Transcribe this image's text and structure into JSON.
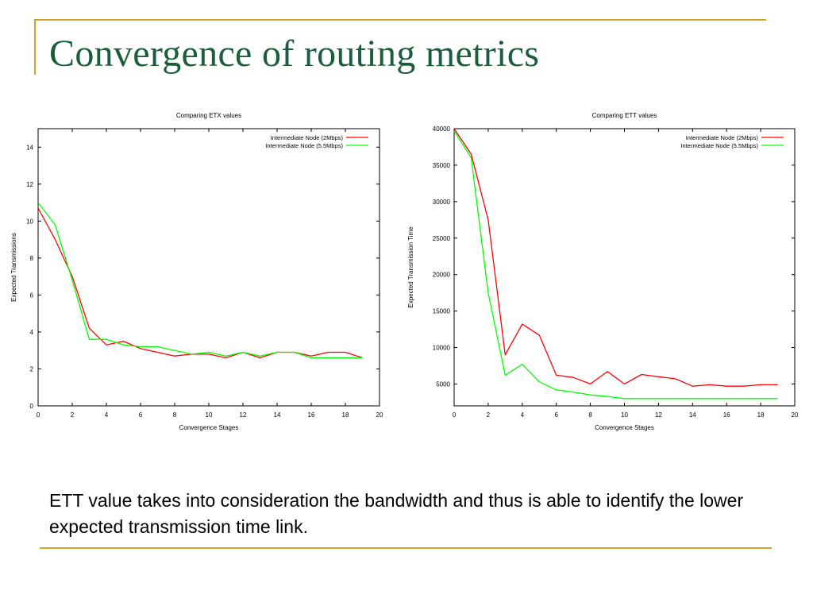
{
  "slide": {
    "title": "Convergence of routing metrics",
    "caption": "ETT value takes into consideration the bandwidth and thus is able to identify the lower expected transmission time link.",
    "accent_color": "#d4a12a",
    "title_color": "#1b5e3b"
  },
  "chart_data": [
    {
      "type": "line",
      "title": "Comparing ETX values",
      "xlabel": "Convergence Stages",
      "ylabel": "Expected Transmissions",
      "xlim": [
        0,
        20
      ],
      "ylim": [
        0,
        15
      ],
      "xticks": [
        0,
        2,
        4,
        6,
        8,
        10,
        12,
        14,
        16,
        18,
        20
      ],
      "yticks": [
        0,
        2,
        4,
        6,
        8,
        10,
        12,
        14
      ],
      "grid": false,
      "legend_position": "top-right",
      "x": [
        0,
        1,
        2,
        3,
        4,
        5,
        6,
        7,
        8,
        9,
        10,
        11,
        12,
        13,
        14,
        15,
        16,
        17,
        18,
        19
      ],
      "series": [
        {
          "name": "Intermediate Node (2Mbps)",
          "color": "#ff0000",
          "values": [
            10.7,
            9.0,
            7.0,
            4.2,
            3.3,
            3.5,
            3.1,
            2.9,
            2.7,
            2.8,
            2.8,
            2.6,
            2.9,
            2.6,
            2.9,
            2.9,
            2.7,
            2.9,
            2.9,
            2.6
          ]
        },
        {
          "name": "Intermediate Node (5.5Mbps)",
          "color": "#00ff00",
          "values": [
            11.0,
            9.8,
            6.8,
            3.6,
            3.6,
            3.3,
            3.2,
            3.2,
            3.0,
            2.8,
            2.9,
            2.7,
            2.9,
            2.7,
            2.9,
            2.9,
            2.6,
            2.6,
            2.6,
            2.6
          ]
        }
      ]
    },
    {
      "type": "line",
      "title": "Comparing ETT values",
      "xlabel": "Convergence Stages",
      "ylabel": "Expected Transmission Time",
      "xlim": [
        0,
        20
      ],
      "ylim": [
        2000,
        40000
      ],
      "xticks": [
        0,
        2,
        4,
        6,
        8,
        10,
        12,
        14,
        16,
        18,
        20
      ],
      "yticks": [
        5000,
        10000,
        15000,
        20000,
        25000,
        30000,
        35000,
        40000
      ],
      "grid": false,
      "legend_position": "top-right",
      "x": [
        0,
        1,
        2,
        3,
        4,
        5,
        6,
        7,
        8,
        9,
        10,
        11,
        12,
        13,
        14,
        15,
        16,
        17,
        18,
        19
      ],
      "series": [
        {
          "name": "Intermediate Node (2Mbps)",
          "color": "#ff0000",
          "values": [
            40000,
            36500,
            27500,
            9000,
            13200,
            11700,
            6200,
            5900,
            5000,
            6700,
            5000,
            6300,
            6000,
            5700,
            4700,
            4900,
            4700,
            4700,
            4900,
            4900
          ]
        },
        {
          "name": "Intermediate Node (5.5Mbps)",
          "color": "#00ff00",
          "values": [
            39700,
            36000,
            17500,
            6200,
            7700,
            5300,
            4200,
            3900,
            3500,
            3300,
            3000,
            3000,
            3000,
            3000,
            3000,
            3000,
            3000,
            3000,
            3000,
            3000
          ]
        }
      ]
    }
  ]
}
